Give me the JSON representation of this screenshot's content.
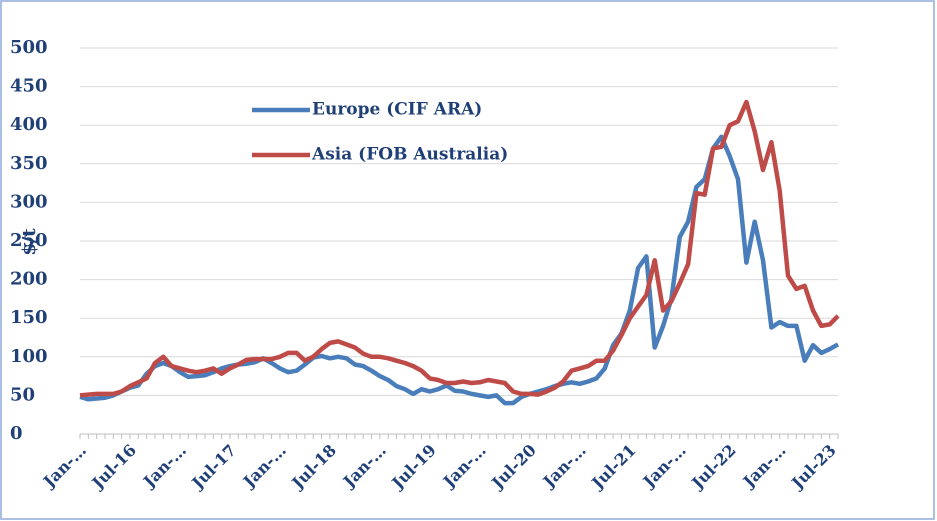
{
  "chart_data": {
    "type": "line",
    "ylabel": "$/t",
    "categories": [
      "Jan-…",
      null,
      null,
      null,
      null,
      null,
      "Jul-16",
      null,
      null,
      null,
      null,
      null,
      "Jan-…",
      null,
      null,
      null,
      null,
      null,
      "Jul-17",
      null,
      null,
      null,
      null,
      null,
      "Jan-…",
      null,
      null,
      null,
      null,
      null,
      "Jul-18",
      null,
      null,
      null,
      null,
      null,
      "Jan-…",
      null,
      null,
      null,
      null,
      null,
      "Jul-19",
      null,
      null,
      null,
      null,
      null,
      "Jan-…",
      null,
      null,
      null,
      null,
      null,
      "Jul-20",
      null,
      null,
      null,
      null,
      null,
      "Jan-…",
      null,
      null,
      null,
      null,
      null,
      "Jul-21",
      null,
      null,
      null,
      null,
      null,
      "Jan-…",
      null,
      null,
      null,
      null,
      null,
      "Jul-22",
      null,
      null,
      null,
      null,
      null,
      "Jan-…",
      null,
      null,
      null,
      null,
      null,
      "Jul-23",
      null
    ],
    "series": [
      {
        "name": "Europe (CIF ARA)",
        "color": "#4a7ebb",
        "values": [
          48,
          45,
          46,
          47,
          50,
          55,
          60,
          63,
          78,
          88,
          92,
          88,
          80,
          74,
          75,
          76,
          80,
          85,
          88,
          90,
          91,
          93,
          98,
          92,
          85,
          80,
          82,
          90,
          99,
          101,
          98,
          100,
          98,
          90,
          88,
          82,
          75,
          70,
          62,
          58,
          52,
          58,
          55,
          58,
          63,
          56,
          55,
          52,
          50,
          48,
          50,
          40,
          40,
          48,
          52,
          55,
          58,
          62,
          65,
          67,
          65,
          68,
          72,
          85,
          115,
          130,
          160,
          215,
          230,
          112,
          140,
          175,
          255,
          275,
          320,
          330,
          370,
          385,
          360,
          330,
          222,
          275,
          225,
          138,
          145,
          140,
          140,
          95,
          115,
          105,
          110,
          116
        ]
      },
      {
        "name": "Asia (FOB Australia)",
        "color": "#be4b48",
        "values": [
          50,
          51,
          52,
          52,
          52,
          55,
          62,
          67,
          72,
          92,
          100,
          88,
          85,
          82,
          80,
          82,
          85,
          78,
          85,
          90,
          96,
          97,
          97,
          97,
          100,
          105,
          105,
          95,
          100,
          110,
          118,
          120,
          116,
          112,
          104,
          100,
          100,
          98,
          95,
          92,
          88,
          82,
          72,
          70,
          66,
          66,
          68,
          66,
          67,
          70,
          68,
          66,
          55,
          52,
          52,
          51,
          55,
          60,
          68,
          82,
          85,
          88,
          95,
          95,
          108,
          128,
          150,
          165,
          180,
          225,
          160,
          172,
          195,
          220,
          312,
          310,
          370,
          372,
          400,
          405,
          430,
          392,
          342,
          378,
          315,
          205,
          188,
          192,
          160,
          140,
          142,
          153
        ]
      }
    ],
    "ylim": [
      0,
      500
    ],
    "yticks": [
      0,
      50,
      100,
      150,
      200,
      250,
      300,
      350,
      400,
      450,
      500
    ],
    "grid": true
  }
}
